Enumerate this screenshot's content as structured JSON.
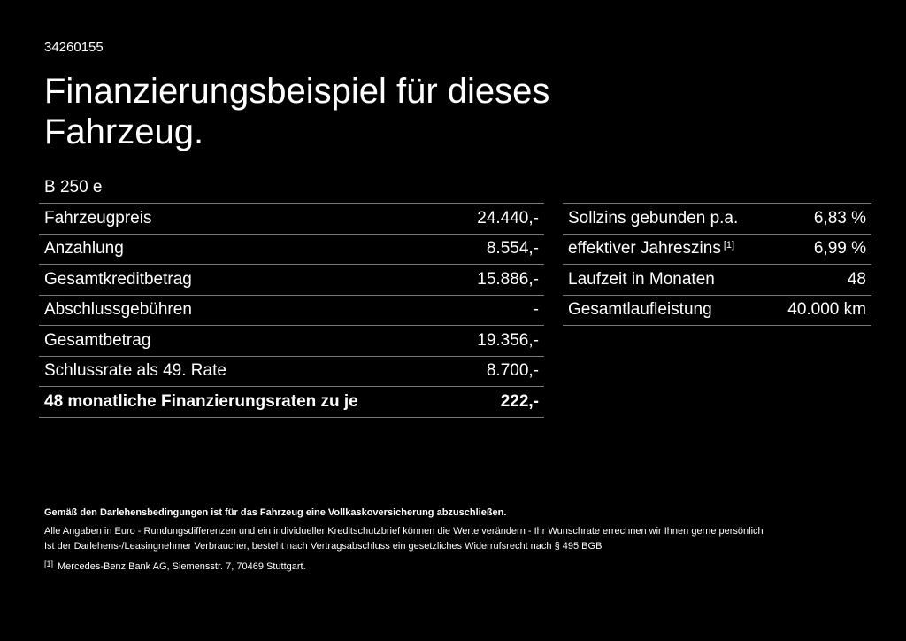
{
  "id": "34260155",
  "title": "Finanzierungsbeispiel für dieses Fahrzeug.",
  "model": "B 250 e",
  "left_table": {
    "rows": [
      [
        "Fahrzeugpreis",
        "24.440,-"
      ],
      [
        "Anzahlung",
        "8.554,-"
      ],
      [
        "Gesamtkreditbetrag",
        "15.886,-"
      ],
      [
        "Abschlussgebühren",
        "-"
      ],
      [
        "Gesamtbetrag",
        "19.356,-"
      ],
      [
        "Schlussrate als 49. Rate",
        "8.700,-"
      ],
      [
        "48 monatliche Finanzierungsraten zu je",
        "222,-"
      ]
    ]
  },
  "right_table": {
    "rows": [
      {
        "label": "Sollzins gebunden p.a.",
        "value": "6,83 %"
      },
      {
        "label": "effektiver Jahreszins",
        "ref": "[1]",
        "value": "6,99 %"
      },
      {
        "label": "Laufzeit in Monaten",
        "value": "48"
      },
      {
        "label": "Gesamtlaufleistung",
        "value": "40.000 km"
      }
    ]
  },
  "notes": [
    "Gemäß den Darlehensbedingungen ist für das Fahrzeug eine Vollkaskoversicherung abzuschließen.",
    "Alle Angaben in Euro - Rundungsdifferenzen und ein individueller Kreditschutzbrief können die Werte verändern - Ihr Wunschrate errechnen wir Ihnen gerne persönlich",
    "Ist der Darlehens-/Leasingnehmer Verbraucher, besteht nach Vertragsabschluss ein gesetzliches Widerrufsrecht nach § 495 BGB"
  ],
  "footnote": {
    "ref": "[1]",
    "text": "Mercedes-Benz Bank AG, Siemensstr. 7, 70469 Stuttgart."
  }
}
